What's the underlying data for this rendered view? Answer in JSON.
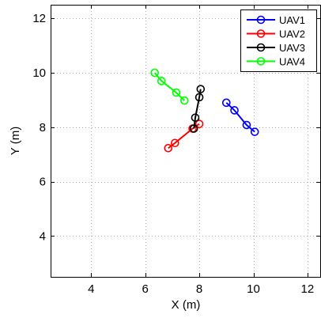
{
  "chart_data": {
    "type": "line",
    "title": "",
    "xlabel": "X (m)",
    "ylabel": "Y (m)",
    "xlim": [
      2.5,
      12.5
    ],
    "ylim": [
      2.5,
      12.5
    ],
    "xticks": [
      4,
      6,
      8,
      10,
      12
    ],
    "yticks": [
      4,
      6,
      8,
      10,
      12
    ],
    "xtick_labels": [
      "4",
      "6",
      "8",
      "10",
      "12"
    ],
    "ytick_labels": [
      "4",
      "6",
      "8",
      "10",
      "12"
    ],
    "grid": true,
    "legend_position": "top-right",
    "series": [
      {
        "name": "UAV1",
        "color": "#0000ff",
        "x": [
          9.0,
          9.3,
          9.75,
          10.05
        ],
        "y": [
          8.9,
          8.62,
          8.08,
          7.83
        ]
      },
      {
        "name": "UAV2",
        "color": "#ff0000",
        "x": [
          6.85,
          7.1,
          7.75,
          8.0
        ],
        "y": [
          7.23,
          7.42,
          7.95,
          8.12
        ]
      },
      {
        "name": "UAV3",
        "color": "#000000",
        "x": [
          7.8,
          7.85,
          8.0,
          8.05
        ],
        "y": [
          7.95,
          8.35,
          9.1,
          9.4
        ]
      },
      {
        "name": "UAV4",
        "color": "#00ff00",
        "x": [
          6.35,
          6.6,
          7.15,
          7.45
        ],
        "y": [
          10.0,
          9.7,
          9.27,
          8.98
        ]
      }
    ]
  }
}
